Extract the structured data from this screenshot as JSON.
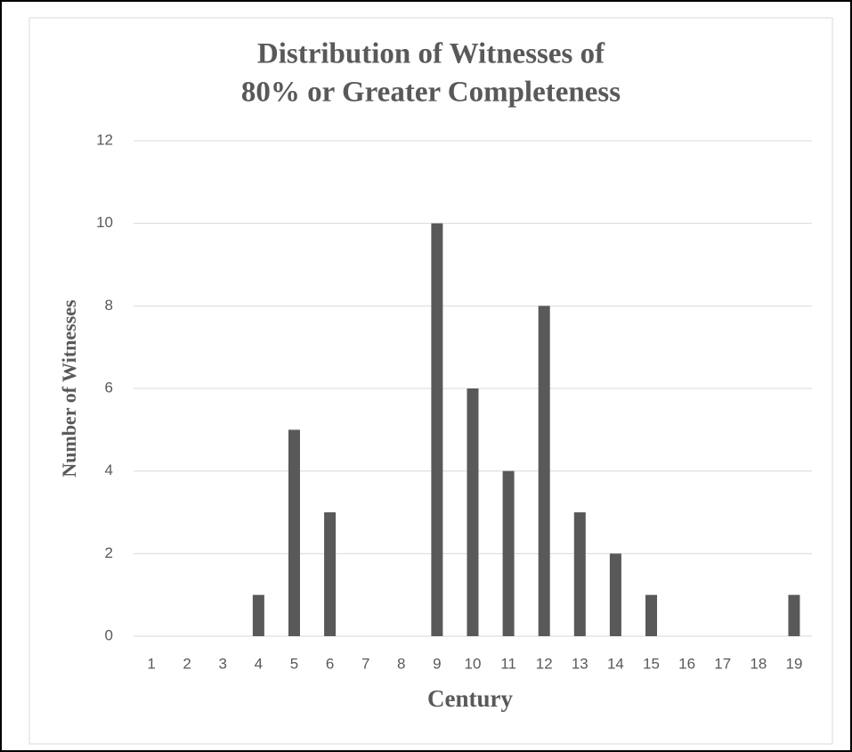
{
  "chart_data": {
    "type": "bar",
    "title": [
      "Distribution of Witnesses of",
      "80% or Greater Completeness"
    ],
    "x_label": "Century",
    "y_label": "Number of Witnesses",
    "categories": [
      "1",
      "2",
      "3",
      "4",
      "5",
      "6",
      "7",
      "8",
      "9",
      "10",
      "11",
      "12",
      "13",
      "14",
      "15",
      "16",
      "17",
      "18",
      "19"
    ],
    "values": [
      0,
      0,
      0,
      1,
      5,
      3,
      0,
      0,
      10,
      6,
      4,
      8,
      3,
      2,
      1,
      0,
      0,
      0,
      1
    ],
    "color": "#595959",
    "ylim": [
      0,
      12
    ],
    "yticks": [
      0,
      2,
      4,
      6,
      8,
      10,
      12
    ],
    "grid": true
  }
}
